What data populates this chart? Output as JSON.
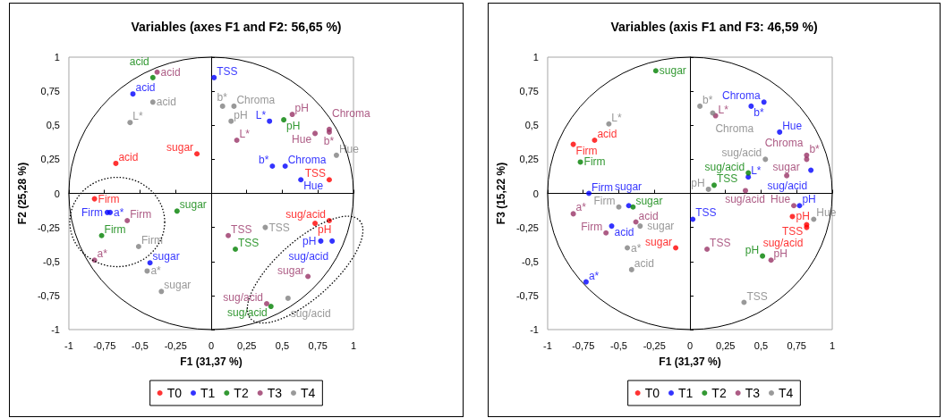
{
  "chart_data": [
    {
      "type": "scatter",
      "title": "Variables (axes F1 and F2: 56,65 %)",
      "xlabel": "F1 (31,37 %)",
      "ylabel": "F2 (25,28 %)",
      "xlim": [
        -1,
        1
      ],
      "ylim": [
        -1,
        1
      ],
      "xticks": [
        -1,
        {
          "value": -0.75,
          "label": "-0,75"
        },
        {
          "value": -0.5,
          "label": "-0,5"
        },
        {
          "value": -0.25,
          "label": "-0,25"
        },
        0,
        {
          "value": 0.25,
          "label": "0,25"
        },
        {
          "value": 0.5,
          "label": "0,5"
        },
        {
          "value": 0.75,
          "label": "0,75"
        },
        1
      ],
      "yticks": [
        -1,
        {
          "value": -0.75,
          "label": "-0,75"
        },
        {
          "value": -0.5,
          "label": "-0,5"
        },
        {
          "value": -0.25,
          "label": "-0,25"
        },
        0,
        {
          "value": 0.25,
          "label": "0,25"
        },
        {
          "value": 0.5,
          "label": "0,5"
        },
        {
          "value": 0.75,
          "label": "0,75"
        },
        1
      ],
      "legend": "bottom",
      "marker": "circle",
      "series": [
        {
          "name": "T0",
          "color": "#ff0000",
          "x": [
            -0.67,
            -0.1,
            0.83,
            -0.82,
            0.73,
            0.83
          ],
          "values": [
            0.22,
            0.29,
            0.1,
            -0.04,
            -0.22,
            -0.2
          ],
          "value_labels": [
            "acid",
            "sugar",
            "TSS",
            "Firm",
            "pH",
            "sug/acid"
          ]
        },
        {
          "name": "T1",
          "color": "#0000ff",
          "x": [
            -0.55,
            0.02,
            0.41,
            0.43,
            0.52,
            0.63,
            -0.73,
            -0.71,
            -0.43,
            0.77,
            0.85
          ],
          "values": [
            0.73,
            0.85,
            0.53,
            0.2,
            0.2,
            0.1,
            -0.14,
            -0.14,
            -0.51,
            -0.35,
            -0.35
          ],
          "value_labels": [
            "acid",
            "TSS",
            "L*",
            "b*",
            "Chroma",
            "Hue",
            "Firm",
            "a*",
            "sugar",
            "pH",
            "sug/acid"
          ]
        },
        {
          "name": "T2",
          "color": "#008000",
          "x": [
            -0.41,
            0.51,
            -0.24,
            -0.77,
            0.17,
            0.42
          ],
          "values": [
            0.85,
            0.54,
            -0.13,
            -0.31,
            -0.41,
            -0.83
          ],
          "value_labels": [
            "acid",
            "pH",
            "sugar",
            "Firm",
            "TSS",
            "sug/acid"
          ]
        },
        {
          "name": "T3",
          "color": "#993366",
          "x": [
            -0.38,
            0.57,
            0.83,
            0.83,
            0.73,
            0.18,
            -0.59,
            -0.82,
            0.12,
            0.68,
            0.39
          ],
          "values": [
            0.89,
            0.58,
            0.47,
            0.45,
            0.44,
            0.39,
            -0.2,
            -0.49,
            -0.31,
            -0.61,
            -0.81
          ],
          "value_labels": [
            "acid",
            "pH",
            "Chroma",
            "b*",
            "Hue",
            "L*",
            "Firm",
            "a*",
            "TSS",
            "sugar",
            "sug/acid"
          ]
        },
        {
          "name": "T4",
          "color": "#808080",
          "x": [
            -0.41,
            -0.57,
            0.08,
            0.16,
            0.14,
            0.88,
            -0.51,
            -0.45,
            -0.35,
            0.38,
            0.54
          ],
          "values": [
            0.67,
            0.52,
            0.64,
            0.64,
            0.53,
            0.28,
            -0.39,
            -0.57,
            -0.72,
            -0.25,
            -0.77
          ],
          "value_labels": [
            "acid",
            "L*",
            "b*",
            "Chroma",
            "pH",
            "Hue",
            "Firm",
            "a*",
            "sugar",
            "TSS",
            "sug/acid"
          ]
        }
      ]
    },
    {
      "type": "scatter",
      "title": "Variables (axis F1 and F3: 46,59 %)",
      "xlabel": "F1 (31,37 %)",
      "ylabel": "F3 (15,22 %)",
      "xlim": [
        -1,
        1
      ],
      "ylim": [
        -1,
        1
      ],
      "xticks": [
        -1,
        {
          "value": -0.75,
          "label": "-0,75"
        },
        {
          "value": -0.5,
          "label": "-0,5"
        },
        {
          "value": -0.25,
          "label": "-0,25"
        },
        0,
        {
          "value": 0.25,
          "label": "0,25"
        },
        {
          "value": 0.5,
          "label": "0,5"
        },
        {
          "value": 0.75,
          "label": "0,75"
        },
        1
      ],
      "yticks": [
        -1,
        {
          "value": -0.75,
          "label": "-0,75"
        },
        {
          "value": -0.5,
          "label": "-0,5"
        },
        {
          "value": -0.25,
          "label": "-0,25"
        },
        0,
        {
          "value": 0.25,
          "label": "0,25"
        },
        {
          "value": 0.5,
          "label": "0,5"
        },
        {
          "value": 0.75,
          "label": "0,75"
        },
        1
      ],
      "legend": "bottom",
      "marker": "circle",
      "series": [
        {
          "name": "T0",
          "color": "#ff0000",
          "x": [
            -0.82,
            -0.67,
            -0.1,
            0.72,
            0.82,
            0.82
          ],
          "values": [
            0.36,
            0.39,
            -0.4,
            -0.17,
            -0.23,
            -0.25
          ],
          "value_labels": [
            "Firm",
            "acid",
            "sugar",
            "pH",
            "TSS",
            "sug/acid"
          ]
        },
        {
          "name": "T1",
          "color": "#0000ff",
          "x": [
            0.43,
            0.52,
            0.63,
            0.41,
            0.85,
            -0.71,
            -0.43,
            -0.55,
            -0.73,
            0.02,
            0.77
          ],
          "values": [
            0.64,
            0.67,
            0.45,
            0.12,
            0.17,
            0,
            -0.09,
            -0.24,
            -0.65,
            -0.19,
            -0.09
          ],
          "value_labels": [
            "b*",
            "Chroma",
            "Hue",
            "L*",
            "sug/acid",
            "Firm",
            "sugar",
            "acid",
            "a*",
            "TSS",
            "pH"
          ]
        },
        {
          "name": "T2",
          "color": "#008000",
          "x": [
            -0.24,
            -0.77,
            0.41,
            0.17,
            -0.4,
            0.51
          ],
          "values": [
            0.9,
            0.23,
            0.15,
            0.06,
            -0.1,
            -0.46
          ],
          "value_labels": [
            "sugar",
            "Firm",
            "sug/acid",
            "TSS",
            "sugar",
            "pH"
          ]
        },
        {
          "name": "T3",
          "color": "#993366",
          "x": [
            0.18,
            0.82,
            0.82,
            0.68,
            0.39,
            -0.82,
            -0.38,
            -0.59,
            0.12,
            0.57,
            0.73
          ],
          "values": [
            0.57,
            0.28,
            0.25,
            0.13,
            0.02,
            -0.15,
            -0.21,
            -0.29,
            -0.41,
            -0.49,
            -0.09
          ],
          "value_labels": [
            "L*",
            "b*",
            "Chroma",
            "sugar",
            "sug/acid",
            "a*",
            "acid",
            "Firm",
            "TSS",
            "pH",
            "Hue"
          ]
        },
        {
          "name": "T4",
          "color": "#808080",
          "x": [
            -0.57,
            0.07,
            0.16,
            0.53,
            0.13,
            -0.5,
            -0.35,
            -0.44,
            -0.41,
            0.38,
            0.87
          ],
          "values": [
            0.51,
            0.64,
            0.59,
            0.25,
            0.03,
            -0.1,
            -0.24,
            -0.4,
            -0.56,
            -0.8,
            -0.19
          ],
          "value_labels": [
            "L*",
            "b*",
            "Chroma",
            "sug/acid",
            "pH",
            "Firm",
            "sugar",
            "a*",
            "acid",
            "TSS",
            "Hue"
          ]
        }
      ]
    }
  ]
}
